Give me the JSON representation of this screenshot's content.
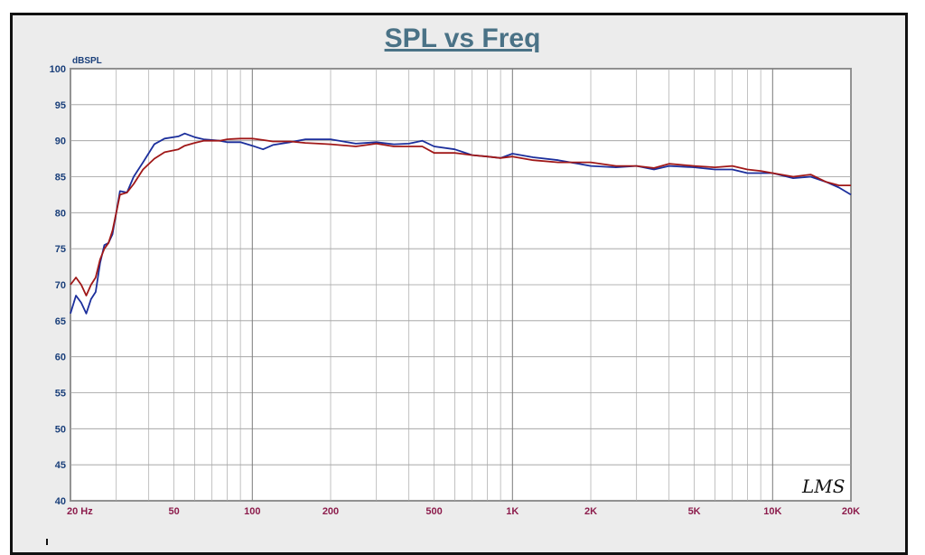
{
  "chart_data": {
    "type": "line",
    "title": "SPL vs Freq",
    "ylabel": "dBSPL",
    "xlabel": "",
    "x_scale": "log",
    "xlim": [
      20,
      20000
    ],
    "ylim": [
      40,
      100
    ],
    "grid": true,
    "y_ticks": [
      "100",
      "95",
      "90",
      "85",
      "80",
      "75",
      "70",
      "65",
      "60",
      "55",
      "50",
      "45",
      "40"
    ],
    "x_tick_labels": [
      {
        "f": 20,
        "label": "20  Hz"
      },
      {
        "f": 50,
        "label": "50"
      },
      {
        "f": 100,
        "label": "100"
      },
      {
        "f": 200,
        "label": "200"
      },
      {
        "f": 500,
        "label": "500"
      },
      {
        "f": 1000,
        "label": "1K"
      },
      {
        "f": 2000,
        "label": "2K"
      },
      {
        "f": 5000,
        "label": "5K"
      },
      {
        "f": 10000,
        "label": "10K"
      },
      {
        "f": 20000,
        "label": "20K"
      }
    ],
    "series": [
      {
        "color": "#1c2f9c",
        "points": [
          [
            20,
            66
          ],
          [
            21,
            68.5
          ],
          [
            22,
            67.5
          ],
          [
            23,
            66
          ],
          [
            24,
            68
          ],
          [
            25,
            69
          ],
          [
            26,
            73
          ],
          [
            27,
            75.5
          ],
          [
            28,
            75.8
          ],
          [
            29,
            77
          ],
          [
            30,
            80
          ],
          [
            31,
            83
          ],
          [
            33,
            82.8
          ],
          [
            35,
            85
          ],
          [
            38,
            87
          ],
          [
            42,
            89.5
          ],
          [
            46,
            90.3
          ],
          [
            52,
            90.6
          ],
          [
            55,
            91
          ],
          [
            60,
            90.5
          ],
          [
            65,
            90.2
          ],
          [
            70,
            90.1
          ],
          [
            75,
            90
          ],
          [
            80,
            89.8
          ],
          [
            90,
            89.8
          ],
          [
            100,
            89.3
          ],
          [
            110,
            88.8
          ],
          [
            120,
            89.4
          ],
          [
            140,
            89.8
          ],
          [
            160,
            90.2
          ],
          [
            180,
            90.2
          ],
          [
            200,
            90.2
          ],
          [
            250,
            89.6
          ],
          [
            300,
            89.8
          ],
          [
            350,
            89.5
          ],
          [
            400,
            89.6
          ],
          [
            450,
            90
          ],
          [
            500,
            89.2
          ],
          [
            600,
            88.8
          ],
          [
            700,
            88
          ],
          [
            800,
            87.8
          ],
          [
            900,
            87.6
          ],
          [
            1000,
            88.2
          ],
          [
            1200,
            87.7
          ],
          [
            1500,
            87.3
          ],
          [
            2000,
            86.5
          ],
          [
            2500,
            86.3
          ],
          [
            3000,
            86.5
          ],
          [
            3500,
            86
          ],
          [
            4000,
            86.5
          ],
          [
            5000,
            86.3
          ],
          [
            6000,
            86
          ],
          [
            7000,
            86
          ],
          [
            8000,
            85.5
          ],
          [
            9000,
            85.5
          ],
          [
            10000,
            85.5
          ],
          [
            12000,
            84.8
          ],
          [
            14000,
            85
          ],
          [
            16000,
            84.3
          ],
          [
            18000,
            83.5
          ],
          [
            20000,
            82.5
          ]
        ]
      },
      {
        "color": "#a01818",
        "points": [
          [
            20,
            70
          ],
          [
            21,
            71
          ],
          [
            22,
            70
          ],
          [
            23,
            68.5
          ],
          [
            24,
            70
          ],
          [
            25,
            71
          ],
          [
            26,
            73.5
          ],
          [
            27,
            75
          ],
          [
            28,
            75.8
          ],
          [
            29,
            77.5
          ],
          [
            30,
            80
          ],
          [
            31,
            82.5
          ],
          [
            33,
            82.8
          ],
          [
            35,
            84
          ],
          [
            38,
            86
          ],
          [
            42,
            87.5
          ],
          [
            46,
            88.4
          ],
          [
            52,
            88.8
          ],
          [
            55,
            89.3
          ],
          [
            60,
            89.7
          ],
          [
            65,
            90
          ],
          [
            70,
            90
          ],
          [
            75,
            90
          ],
          [
            80,
            90.2
          ],
          [
            90,
            90.3
          ],
          [
            100,
            90.3
          ],
          [
            110,
            90.1
          ],
          [
            120,
            89.9
          ],
          [
            140,
            89.9
          ],
          [
            160,
            89.7
          ],
          [
            180,
            89.6
          ],
          [
            200,
            89.5
          ],
          [
            250,
            89.2
          ],
          [
            300,
            89.6
          ],
          [
            350,
            89.2
          ],
          [
            400,
            89.2
          ],
          [
            450,
            89.2
          ],
          [
            500,
            88.3
          ],
          [
            600,
            88.3
          ],
          [
            700,
            88
          ],
          [
            800,
            87.8
          ],
          [
            900,
            87.6
          ],
          [
            1000,
            87.8
          ],
          [
            1200,
            87.3
          ],
          [
            1500,
            87
          ],
          [
            2000,
            87
          ],
          [
            2500,
            86.5
          ],
          [
            3000,
            86.5
          ],
          [
            3500,
            86.2
          ],
          [
            4000,
            86.8
          ],
          [
            5000,
            86.5
          ],
          [
            6000,
            86.3
          ],
          [
            7000,
            86.5
          ],
          [
            8000,
            86
          ],
          [
            9000,
            85.8
          ],
          [
            10000,
            85.5
          ],
          [
            12000,
            85
          ],
          [
            14000,
            85.3
          ],
          [
            16000,
            84.3
          ],
          [
            18000,
            83.8
          ],
          [
            20000,
            83.8
          ]
        ]
      }
    ],
    "logo_text": "LMS"
  }
}
